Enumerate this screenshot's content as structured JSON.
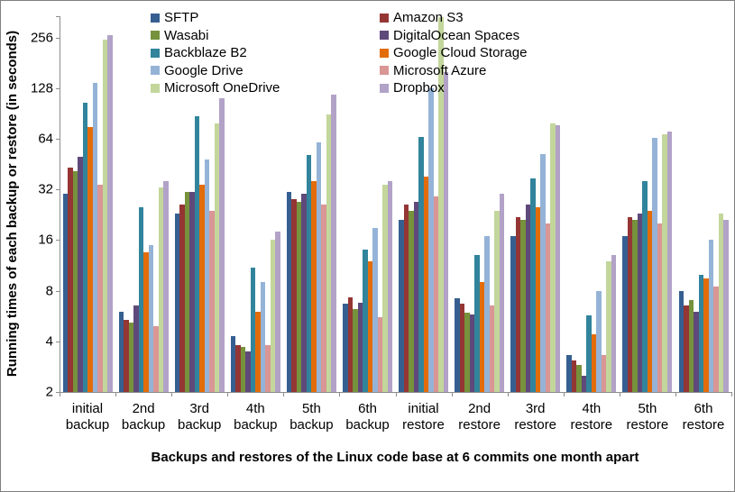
{
  "chart_data": {
    "type": "bar",
    "y_scale": "log2",
    "grid": false,
    "legend_position": "top-two-columns",
    "ylabel": "Running times of each backup or restore (in seconds)",
    "xlabel": "Backups and restores of the Linux code base at 6 commits one month apart",
    "y_ticks": [
      2,
      4,
      8,
      16,
      32,
      64,
      128,
      256
    ],
    "ylim": [
      2,
      342
    ],
    "categories": [
      "initial backup",
      "2nd backup",
      "3rd backup",
      "4th backup",
      "5th backup",
      "6th backup",
      "initial restore",
      "2nd restore",
      "3rd restore",
      "4th restore",
      "5th restore",
      "6th restore"
    ],
    "series": [
      {
        "name": "SFTP",
        "color": "#365F91",
        "values": [
          30,
          6,
          23,
          4.3,
          31,
          6.7,
          21,
          7.2,
          17,
          3.3,
          17,
          8
        ]
      },
      {
        "name": "Amazon S3",
        "color": "#943634",
        "values": [
          43,
          5.4,
          26,
          3.8,
          28,
          7.3,
          26,
          6.7,
          22,
          3.1,
          22,
          6.5
        ]
      },
      {
        "name": "Wasabi",
        "color": "#76923C",
        "values": [
          41,
          5.2,
          31,
          3.7,
          27,
          6.2,
          24,
          5.9,
          21,
          2.9,
          21,
          7
        ]
      },
      {
        "name": "DigitalOcean Spaces",
        "color": "#5F497A",
        "values": [
          50,
          6.5,
          31,
          3.5,
          30,
          6.8,
          27,
          5.8,
          26,
          2.5,
          23,
          6
        ]
      },
      {
        "name": "Backblaze B2",
        "color": "#31849B",
        "values": [
          105,
          25,
          87,
          11,
          51,
          14,
          66,
          13,
          37,
          5.7,
          36,
          10
        ]
      },
      {
        "name": "Google Cloud Storage",
        "color": "#E36C0A",
        "values": [
          75,
          13.5,
          34,
          6,
          36,
          12,
          38,
          9,
          25,
          4.4,
          24,
          9.5
        ]
      },
      {
        "name": "Google Drive",
        "color": "#95B3D7",
        "values": [
          137,
          15,
          48,
          9,
          61,
          19,
          128,
          17,
          52,
          8,
          65,
          16
        ]
      },
      {
        "name": "Microsoft Azure",
        "color": "#D99694",
        "values": [
          34,
          4.9,
          24,
          3.8,
          26,
          5.6,
          29,
          6.5,
          20,
          3.3,
          20,
          8.5
        ]
      },
      {
        "name": "Microsoft OneDrive",
        "color": "#C3D69B",
        "values": [
          250,
          33,
          79,
          16,
          89,
          34,
          340,
          24,
          79,
          12,
          68,
          23
        ]
      },
      {
        "name": "Dropbox",
        "color": "#B2A2C7",
        "values": [
          265,
          36,
          111,
          18,
          117,
          36,
          160,
          30,
          77,
          13,
          71,
          21
        ]
      }
    ],
    "legend_columns": [
      [
        "SFTP",
        "Wasabi",
        "Backblaze B2",
        "Google Drive",
        "Microsoft OneDrive"
      ],
      [
        "Amazon S3",
        "DigitalOcean Spaces",
        "Google Cloud Storage",
        "Microsoft Azure",
        "Dropbox"
      ]
    ]
  }
}
